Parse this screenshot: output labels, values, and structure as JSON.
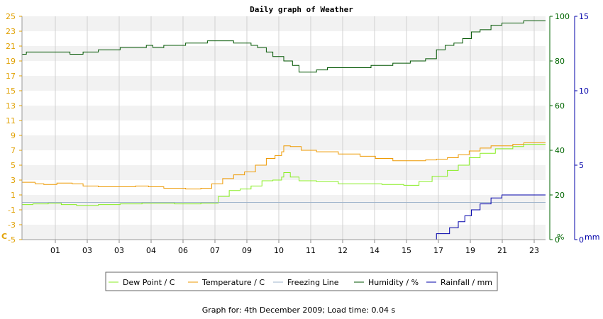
{
  "chart_data": {
    "type": "line",
    "title": "Daily graph of Weather",
    "footer": "Graph for: 4th December 2009; Load time: 0.04 s",
    "x_tick_labels": [
      "01",
      "03",
      "03",
      "04",
      "06",
      "07",
      "09",
      "10",
      "11",
      "12",
      "14",
      "15",
      "17",
      "19",
      "21",
      "23"
    ],
    "x_range_hours": [
      0,
      24
    ],
    "axes": {
      "temperature": {
        "unit_label": "C",
        "range": [
          -5,
          25
        ],
        "ticks": [
          "25",
          "23",
          "21",
          "19",
          "17",
          "15",
          "13",
          "11",
          "9",
          "7",
          "5",
          "3",
          "1",
          "-1",
          "-3",
          "-5"
        ],
        "color": "#e0a000"
      },
      "humidity": {
        "unit_label": "%",
        "range": [
          0,
          100
        ],
        "ticks": [
          "100",
          "80",
          "60",
          "40",
          "20",
          "0"
        ],
        "color": "#006600"
      },
      "rainfall": {
        "unit_label": "mm",
        "range": [
          0,
          15
        ],
        "ticks": [
          "15",
          "10",
          "5",
          "0"
        ],
        "color": "#0000aa"
      }
    },
    "grid": true,
    "legend_position": "bottom",
    "series": [
      {
        "name": "Dew Point / C",
        "axis": "temperature",
        "color": "#88ee22",
        "points": [
          [
            0,
            -0.3
          ],
          [
            0.5,
            -0.2
          ],
          [
            1.2,
            -0.1
          ],
          [
            1.8,
            -0.3
          ],
          [
            2.5,
            -0.4
          ],
          [
            3.5,
            -0.3
          ],
          [
            4.5,
            -0.2
          ],
          [
            5.5,
            -0.1
          ],
          [
            6.5,
            -0.1
          ],
          [
            7,
            -0.2
          ],
          [
            8.2,
            -0.1
          ],
          [
            9,
            0.8
          ],
          [
            9.5,
            1.6
          ],
          [
            10,
            1.8
          ],
          [
            10.5,
            2.2
          ],
          [
            11,
            2.9
          ],
          [
            11.5,
            3.0
          ],
          [
            11.9,
            3.4
          ],
          [
            12,
            4.0
          ],
          [
            12.3,
            3.4
          ],
          [
            12.7,
            2.9
          ],
          [
            13.5,
            2.8
          ],
          [
            14.5,
            2.5
          ],
          [
            15.5,
            2.5
          ],
          [
            16.5,
            2.4
          ],
          [
            17.5,
            2.3
          ],
          [
            18.2,
            2.8
          ],
          [
            18.8,
            3.5
          ],
          [
            19.5,
            4.3
          ],
          [
            20,
            5.0
          ],
          [
            20.5,
            6.0
          ],
          [
            21,
            6.6
          ],
          [
            21.7,
            7.2
          ],
          [
            22.5,
            7.5
          ],
          [
            23,
            7.8
          ]
        ]
      },
      {
        "name": "Temperature / C",
        "axis": "temperature",
        "color": "#ee9900",
        "points": [
          [
            0,
            2.7
          ],
          [
            0.6,
            2.5
          ],
          [
            1.0,
            2.4
          ],
          [
            1.6,
            2.6
          ],
          [
            2.3,
            2.5
          ],
          [
            2.8,
            2.2
          ],
          [
            3.5,
            2.1
          ],
          [
            4.5,
            2.1
          ],
          [
            5.2,
            2.2
          ],
          [
            5.8,
            2.1
          ],
          [
            6.5,
            1.9
          ],
          [
            7.5,
            1.8
          ],
          [
            8.2,
            1.9
          ],
          [
            8.7,
            2.5
          ],
          [
            9.2,
            3.2
          ],
          [
            9.7,
            3.7
          ],
          [
            10.2,
            4.1
          ],
          [
            10.7,
            5.0
          ],
          [
            11.2,
            5.9
          ],
          [
            11.6,
            6.3
          ],
          [
            11.9,
            6.8
          ],
          [
            12,
            7.6
          ],
          [
            12.3,
            7.5
          ],
          [
            12.8,
            7.0
          ],
          [
            13.5,
            6.8
          ],
          [
            14.5,
            6.5
          ],
          [
            15.5,
            6.2
          ],
          [
            16.2,
            5.9
          ],
          [
            17,
            5.6
          ],
          [
            18,
            5.6
          ],
          [
            18.5,
            5.7
          ],
          [
            19,
            5.8
          ],
          [
            19.5,
            6.0
          ],
          [
            20,
            6.4
          ],
          [
            20.5,
            6.9
          ],
          [
            21,
            7.3
          ],
          [
            21.5,
            7.6
          ],
          [
            22.5,
            7.8
          ],
          [
            23,
            8.0
          ]
        ]
      },
      {
        "name": "Freezing Line",
        "axis": "temperature",
        "color": "#9fb4cc",
        "points": [
          [
            0,
            0
          ],
          [
            24,
            0
          ]
        ]
      },
      {
        "name": "Humidity / %",
        "axis": "humidity",
        "color": "#005500",
        "points": [
          [
            0,
            83
          ],
          [
            0.2,
            84
          ],
          [
            1.0,
            84
          ],
          [
            1.5,
            84
          ],
          [
            2.2,
            83
          ],
          [
            2.8,
            84
          ],
          [
            3.5,
            85
          ],
          [
            4.5,
            86
          ],
          [
            5.2,
            86
          ],
          [
            5.7,
            87
          ],
          [
            6,
            86
          ],
          [
            6.5,
            87
          ],
          [
            7.5,
            88
          ],
          [
            8.5,
            89
          ],
          [
            9.2,
            89
          ],
          [
            9.7,
            88
          ],
          [
            10.5,
            87
          ],
          [
            10.8,
            86
          ],
          [
            11.2,
            84
          ],
          [
            11.5,
            82
          ],
          [
            12,
            80
          ],
          [
            12.4,
            78
          ],
          [
            12.7,
            75
          ],
          [
            13.5,
            76
          ],
          [
            14,
            77
          ],
          [
            15,
            77
          ],
          [
            16,
            78
          ],
          [
            17,
            79
          ],
          [
            17.8,
            80
          ],
          [
            18.5,
            81
          ],
          [
            19,
            85
          ],
          [
            19.4,
            87
          ],
          [
            19.8,
            88
          ],
          [
            20.2,
            90
          ],
          [
            20.6,
            93
          ],
          [
            21,
            94
          ],
          [
            21.5,
            96
          ],
          [
            22,
            97
          ],
          [
            22.5,
            97
          ],
          [
            23,
            98
          ],
          [
            23.4,
            98
          ]
        ]
      },
      {
        "name": "Rainfall / mm",
        "axis": "rainfall",
        "color": "#0000aa",
        "points": [
          [
            0,
            0
          ],
          [
            18.8,
            0
          ],
          [
            19,
            0.4
          ],
          [
            19.6,
            0.8
          ],
          [
            20,
            1.2
          ],
          [
            20.3,
            1.6
          ],
          [
            20.6,
            2.0
          ],
          [
            21,
            2.4
          ],
          [
            21.5,
            2.8
          ],
          [
            22,
            3.0
          ],
          [
            24,
            3.0
          ]
        ]
      }
    ]
  }
}
